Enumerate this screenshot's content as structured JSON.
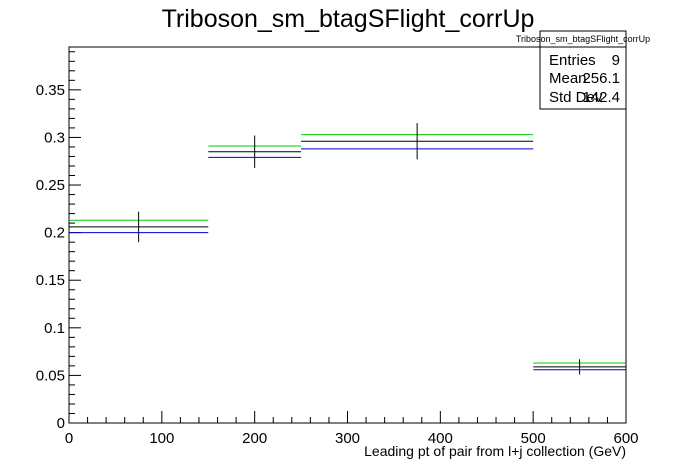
{
  "chart_data": {
    "type": "histogram",
    "title": "Triboson_sm_btagSFlight_corrUp",
    "xlabel": "Leading pt of pair from l+j collection (GeV)",
    "ylabel": "",
    "xlim": [
      0,
      600
    ],
    "ylim": [
      0,
      0.395
    ],
    "x_ticks": [
      0,
      100,
      200,
      300,
      400,
      500,
      600
    ],
    "x_tick_labels": [
      "0",
      "100",
      "200",
      "300",
      "400",
      "500",
      "600"
    ],
    "y_ticks": [
      0,
      0.05,
      0.1,
      0.15,
      0.2,
      0.25,
      0.3,
      0.35
    ],
    "y_tick_labels": [
      "0",
      "0.05",
      "0.1",
      "0.15",
      "0.2",
      "0.25",
      "0.3",
      "0.35"
    ],
    "bins": [
      {
        "low": 0,
        "high": 150,
        "center": 75
      },
      {
        "low": 150,
        "high": 250,
        "center": 200
      },
      {
        "low": 250,
        "high": 500,
        "center": 375
      },
      {
        "low": 500,
        "high": 600,
        "center": 550
      }
    ],
    "series": [
      {
        "color": "#00cc00",
        "values": [
          0.213,
          0.291,
          0.303,
          0.063
        ]
      },
      {
        "color": "#000000",
        "values": [
          0.206,
          0.285,
          0.296,
          0.059
        ],
        "errors": [
          0.016,
          0.017,
          0.019,
          0.008
        ]
      },
      {
        "color": "#0000cc",
        "values": [
          0.2,
          0.279,
          0.288,
          0.056
        ]
      }
    ],
    "stats": {
      "name": "Triboson_sm_btagSFlight_corrUp",
      "rows": [
        {
          "label": "Entries",
          "value": "9"
        },
        {
          "label": "Mean",
          "value": "256.1"
        },
        {
          "label": "Std Dev",
          "value": "142.4"
        }
      ]
    },
    "grid": false,
    "legend": "none"
  }
}
